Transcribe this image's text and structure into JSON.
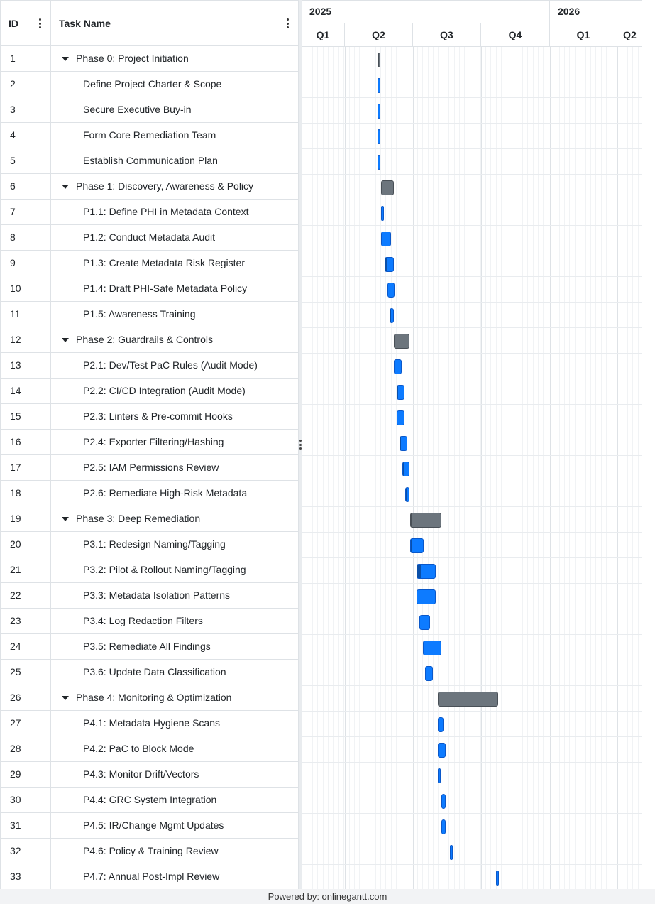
{
  "grid": {
    "id_header": "ID",
    "name_header": "Task Name",
    "rows": [
      {
        "id": "1",
        "name": "Phase 0: Project Initiation",
        "type": "phase"
      },
      {
        "id": "2",
        "name": "Define Project Charter & Scope",
        "type": "task"
      },
      {
        "id": "3",
        "name": "Secure Executive Buy-in",
        "type": "task"
      },
      {
        "id": "4",
        "name": "Form Core Remediation Team",
        "type": "task"
      },
      {
        "id": "5",
        "name": "Establish Communication Plan",
        "type": "task"
      },
      {
        "id": "6",
        "name": "Phase 1: Discovery, Awareness & Policy",
        "type": "phase"
      },
      {
        "id": "7",
        "name": "P1.1: Define PHI in Metadata Context",
        "type": "task"
      },
      {
        "id": "8",
        "name": "P1.2: Conduct Metadata Audit",
        "type": "task"
      },
      {
        "id": "9",
        "name": "P1.3: Create Metadata Risk Register",
        "type": "task"
      },
      {
        "id": "10",
        "name": "P1.4: Draft PHI-Safe Metadata Policy",
        "type": "task"
      },
      {
        "id": "11",
        "name": "P1.5: Awareness Training",
        "type": "task"
      },
      {
        "id": "12",
        "name": "Phase 2: Guardrails & Controls",
        "type": "phase"
      },
      {
        "id": "13",
        "name": "P2.1: Dev/Test PaC Rules (Audit Mode)",
        "type": "task"
      },
      {
        "id": "14",
        "name": "P2.2: CI/CD Integration (Audit Mode)",
        "type": "task"
      },
      {
        "id": "15",
        "name": "P2.3: Linters & Pre-commit Hooks",
        "type": "task"
      },
      {
        "id": "16",
        "name": "P2.4: Exporter Filtering/Hashing",
        "type": "task"
      },
      {
        "id": "17",
        "name": "P2.5: IAM Permissions Review",
        "type": "task"
      },
      {
        "id": "18",
        "name": "P2.6: Remediate High-Risk Metadata",
        "type": "task"
      },
      {
        "id": "19",
        "name": "Phase 3: Deep Remediation",
        "type": "phase"
      },
      {
        "id": "20",
        "name": "P3.1: Redesign Naming/Tagging",
        "type": "task"
      },
      {
        "id": "21",
        "name": "P3.2: Pilot & Rollout Naming/Tagging",
        "type": "task"
      },
      {
        "id": "22",
        "name": "P3.3: Metadata Isolation Patterns",
        "type": "task"
      },
      {
        "id": "23",
        "name": "P3.4: Log Redaction Filters",
        "type": "task"
      },
      {
        "id": "24",
        "name": "P3.5: Remediate All Findings",
        "type": "task"
      },
      {
        "id": "25",
        "name": "P3.6: Update Data Classification",
        "type": "task"
      },
      {
        "id": "26",
        "name": "Phase 4: Monitoring & Optimization",
        "type": "phase"
      },
      {
        "id": "27",
        "name": "P4.1: Metadata Hygiene Scans",
        "type": "task"
      },
      {
        "id": "28",
        "name": "P4.2: PaC to Block Mode",
        "type": "task"
      },
      {
        "id": "29",
        "name": "P4.3: Monitor Drift/Vectors",
        "type": "task"
      },
      {
        "id": "30",
        "name": "P4.4: GRC System Integration",
        "type": "task"
      },
      {
        "id": "31",
        "name": "P4.5: IR/Change Mgmt Updates",
        "type": "task"
      },
      {
        "id": "32",
        "name": "P4.6: Policy & Training Review",
        "type": "task"
      },
      {
        "id": "33",
        "name": "P4.7: Annual Post-Impl Review",
        "type": "task"
      }
    ]
  },
  "timeline": {
    "years": [
      "2025",
      "2026"
    ],
    "quarters": [
      "Q1",
      "Q2",
      "Q3",
      "Q4",
      "Q1",
      "Q2"
    ]
  },
  "chart_data": {
    "type": "gantt",
    "time_unit": "weeks from start of 2025",
    "tasks": [
      {
        "id": 1,
        "start": 14.5,
        "end": 14.9,
        "progress": 0.3
      },
      {
        "id": 2,
        "start": 14.5,
        "end": 14.9,
        "progress": 0
      },
      {
        "id": 3,
        "start": 14.5,
        "end": 14.9,
        "progress": 0
      },
      {
        "id": 4,
        "start": 14.5,
        "end": 14.9,
        "progress": 0
      },
      {
        "id": 5,
        "start": 14.5,
        "end": 14.9,
        "progress": 0
      },
      {
        "id": 6,
        "start": 15.1,
        "end": 17.6,
        "progress": 0.05
      },
      {
        "id": 7,
        "start": 15.1,
        "end": 15.4,
        "progress": 0
      },
      {
        "id": 8,
        "start": 15.1,
        "end": 17.1,
        "progress": 0
      },
      {
        "id": 9,
        "start": 15.8,
        "end": 17.6,
        "progress": 0.15
      },
      {
        "id": 10,
        "start": 16.3,
        "end": 17.7,
        "progress": 0
      },
      {
        "id": 11,
        "start": 16.8,
        "end": 17.6,
        "progress": 0.1
      },
      {
        "id": 12,
        "start": 17.6,
        "end": 20.6,
        "progress": 0
      },
      {
        "id": 13,
        "start": 17.6,
        "end": 19.0,
        "progress": 0.05
      },
      {
        "id": 14,
        "start": 18.1,
        "end": 19.6,
        "progress": 0.15
      },
      {
        "id": 15,
        "start": 18.1,
        "end": 19.6,
        "progress": 0
      },
      {
        "id": 16,
        "start": 18.7,
        "end": 20.2,
        "progress": 0.05
      },
      {
        "id": 17,
        "start": 19.2,
        "end": 20.6,
        "progress": 0.05
      },
      {
        "id": 18,
        "start": 19.7,
        "end": 20.6,
        "progress": 0.05
      },
      {
        "id": 19,
        "start": 20.7,
        "end": 26.6,
        "progress": 0.05
      },
      {
        "id": 20,
        "start": 20.7,
        "end": 23.2,
        "progress": 0.05
      },
      {
        "id": 21,
        "start": 21.9,
        "end": 25.6,
        "progress": 0.2
      },
      {
        "id": 22,
        "start": 21.9,
        "end": 25.6,
        "progress": 0
      },
      {
        "id": 23,
        "start": 22.4,
        "end": 24.5,
        "progress": 0
      },
      {
        "id": 24,
        "start": 23.1,
        "end": 26.6,
        "progress": 0.06
      },
      {
        "id": 25,
        "start": 23.5,
        "end": 25.0,
        "progress": 0
      },
      {
        "id": 26,
        "start": 26.0,
        "end": 37.5,
        "progress": 0
      },
      {
        "id": 27,
        "start": 26.0,
        "end": 27.0,
        "progress": 0
      },
      {
        "id": 28,
        "start": 26.0,
        "end": 27.5,
        "progress": 0
      },
      {
        "id": 29,
        "start": 26.0,
        "end": 26.4,
        "progress": 0
      },
      {
        "id": 30,
        "start": 26.6,
        "end": 27.5,
        "progress": 0
      },
      {
        "id": 31,
        "start": 26.6,
        "end": 27.5,
        "progress": 0
      },
      {
        "id": 32,
        "start": 28.3,
        "end": 28.6,
        "progress": 0
      },
      {
        "id": 33,
        "start": 37.0,
        "end": 37.5,
        "progress": 0
      }
    ]
  },
  "footer": {
    "text": "Powered by: onlinegantt.com"
  }
}
